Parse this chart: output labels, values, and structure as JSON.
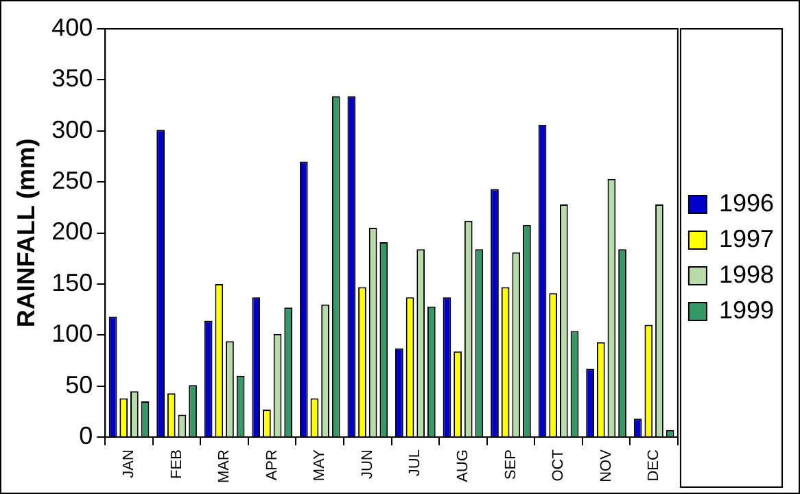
{
  "chart_data": {
    "type": "bar",
    "ylabel": "RAINFALL (mm)",
    "categories": [
      "JAN",
      "FEB",
      "MAR",
      "APR",
      "MAY",
      "JUN",
      "JUL",
      "AUG",
      "SEP",
      "OCT",
      "NOV",
      "DEC"
    ],
    "series": [
      {
        "name": "1996",
        "color": "#0000cc",
        "values": [
          118,
          301,
          114,
          137,
          270,
          334,
          87,
          137,
          243,
          306,
          67,
          18
        ]
      },
      {
        "name": "1997",
        "color": "#ffff00",
        "values": [
          38,
          43,
          150,
          27,
          38,
          147,
          137,
          84,
          147,
          141,
          93,
          110
        ]
      },
      {
        "name": "1998",
        "color": "#b8dca8",
        "values": [
          45,
          22,
          94,
          101,
          130,
          205,
          184,
          212,
          181,
          228,
          253,
          228
        ]
      },
      {
        "name": "1999",
        "color": "#339966",
        "values": [
          35,
          51,
          60,
          127,
          334,
          191,
          128,
          184,
          208,
          104,
          184,
          7
        ]
      }
    ],
    "ylim": [
      0,
      400
    ],
    "yticks": [
      0,
      50,
      100,
      150,
      200,
      250,
      300,
      350,
      400
    ],
    "grid": false,
    "legend": "right"
  }
}
